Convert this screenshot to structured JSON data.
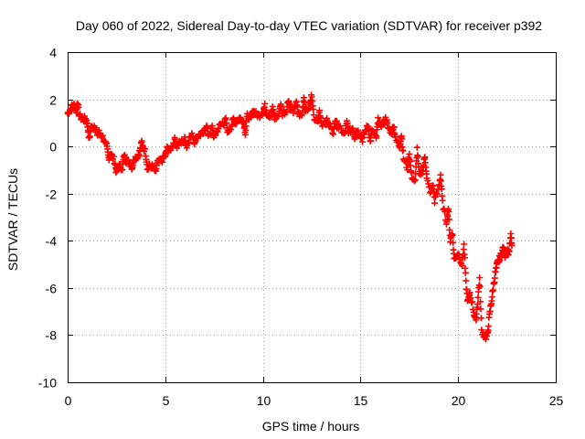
{
  "chart_data": {
    "type": "scatter",
    "title": "Day 060 of 2022, Sidereal Day-to-day VTEC variation (SDTVAR) for receiver p392",
    "xlabel": "GPS time / hours",
    "ylabel": "SDTVAR / TECUs",
    "xlim": [
      0,
      25
    ],
    "ylim": [
      -10,
      4
    ],
    "xticks": [
      0,
      5,
      10,
      15,
      20,
      25
    ],
    "yticks": [
      -10,
      -8,
      -6,
      -4,
      -2,
      0,
      2,
      4
    ],
    "xtick_labels": [
      "0",
      "5",
      "10",
      "15",
      "20",
      "25"
    ],
    "ytick_labels": [
      "-10",
      "-8",
      "-6",
      "-4",
      "-2",
      "0",
      "2",
      "4"
    ],
    "grid": true,
    "marker": "plus",
    "color": "#ff0000",
    "series": [
      {
        "name": "SDTVAR",
        "points": [
          [
            0.0,
            1.4
          ],
          [
            0.15,
            1.6
          ],
          [
            0.3,
            1.8
          ],
          [
            0.45,
            1.5
          ],
          [
            0.6,
            1.3
          ],
          [
            0.8,
            1.1
          ],
          [
            1.0,
            1.0
          ],
          [
            1.2,
            0.8
          ],
          [
            1.4,
            0.9
          ],
          [
            1.6,
            0.6
          ],
          [
            1.8,
            0.4
          ],
          [
            2.0,
            0.0
          ],
          [
            2.2,
            -0.3
          ],
          [
            2.4,
            -0.6
          ],
          [
            2.6,
            -0.8
          ],
          [
            2.8,
            -0.9
          ],
          [
            3.0,
            -0.6
          ],
          [
            3.2,
            -0.7
          ],
          [
            3.4,
            -0.5
          ],
          [
            3.6,
            -0.4
          ],
          [
            3.8,
            0.2
          ],
          [
            4.0,
            -0.3
          ],
          [
            4.2,
            -0.8
          ],
          [
            4.4,
            -0.9
          ],
          [
            4.6,
            -0.7
          ],
          [
            4.8,
            -0.6
          ],
          [
            5.0,
            -0.4
          ],
          [
            5.2,
            -0.2
          ],
          [
            5.4,
            0.1
          ],
          [
            5.6,
            0.0
          ],
          [
            5.8,
            0.2
          ],
          [
            6.0,
            0.3
          ],
          [
            6.2,
            0.3
          ],
          [
            6.4,
            0.5
          ],
          [
            6.6,
            0.4
          ],
          [
            6.8,
            0.5
          ],
          [
            7.0,
            0.6
          ],
          [
            7.2,
            0.5
          ],
          [
            7.4,
            0.8
          ],
          [
            7.6,
            0.6
          ],
          [
            7.8,
            0.9
          ],
          [
            8.0,
            1.0
          ],
          [
            8.2,
            0.6
          ],
          [
            8.4,
            0.9
          ],
          [
            8.6,
            1.0
          ],
          [
            8.8,
            1.2
          ],
          [
            9.0,
            1.1
          ],
          [
            9.2,
            1.3
          ],
          [
            9.4,
            1.2
          ],
          [
            9.6,
            1.4
          ],
          [
            9.8,
            1.3
          ],
          [
            10.0,
            1.5
          ],
          [
            10.2,
            1.4
          ],
          [
            10.4,
            1.3
          ],
          [
            10.6,
            1.2
          ],
          [
            10.8,
            1.3
          ],
          [
            11.0,
            1.4
          ],
          [
            11.2,
            1.5
          ],
          [
            11.4,
            1.6
          ],
          [
            11.6,
            1.5
          ],
          [
            11.8,
            1.4
          ],
          [
            12.0,
            1.3
          ],
          [
            12.2,
            1.5
          ],
          [
            12.4,
            1.7
          ],
          [
            12.6,
            1.3
          ],
          [
            12.8,
            1.1
          ],
          [
            13.0,
            1.0
          ],
          [
            13.2,
            0.9
          ],
          [
            13.4,
            0.8
          ],
          [
            13.6,
            0.6
          ],
          [
            13.8,
            0.9
          ],
          [
            14.0,
            0.7
          ],
          [
            14.2,
            0.5
          ],
          [
            14.4,
            0.6
          ],
          [
            14.6,
            0.8
          ],
          [
            14.8,
            0.7
          ],
          [
            15.0,
            0.5
          ],
          [
            15.2,
            0.6
          ],
          [
            15.4,
            0.9
          ],
          [
            15.6,
            0.7
          ],
          [
            15.8,
            0.3
          ],
          [
            16.0,
            0.9
          ],
          [
            16.2,
            1.0
          ],
          [
            16.4,
            0.8
          ],
          [
            16.6,
            0.6
          ],
          [
            16.8,
            0.3
          ],
          [
            17.0,
            0.0
          ],
          [
            17.2,
            -0.5
          ],
          [
            17.4,
            -0.9
          ],
          [
            17.6,
            -1.2
          ],
          [
            17.8,
            -1.5
          ],
          [
            18.0,
            -1.2
          ],
          [
            18.2,
            -1.0
          ],
          [
            18.4,
            -1.4
          ],
          [
            18.6,
            -2.0
          ],
          [
            18.8,
            -2.3
          ],
          [
            19.0,
            -1.8
          ],
          [
            19.2,
            -2.4
          ],
          [
            19.4,
            -3.2
          ],
          [
            19.6,
            -4.0
          ],
          [
            19.8,
            -4.8
          ],
          [
            20.0,
            -4.5
          ],
          [
            20.2,
            -5.0
          ],
          [
            20.4,
            -5.8
          ],
          [
            20.6,
            -6.2
          ],
          [
            20.8,
            -7.0
          ],
          [
            21.0,
            -6.6
          ],
          [
            21.2,
            -7.8
          ],
          [
            21.4,
            -8.1
          ],
          [
            21.6,
            -7.2
          ],
          [
            21.8,
            -6.0
          ],
          [
            22.0,
            -5.0
          ],
          [
            22.2,
            -4.6
          ],
          [
            22.4,
            -4.6
          ],
          [
            22.6,
            -4.5
          ],
          [
            22.7,
            -3.8
          ],
          [
            22.75,
            -4.2
          ],
          [
            0.5,
            1.9
          ],
          [
            0.9,
            1.2
          ],
          [
            1.1,
            0.3
          ],
          [
            1.5,
            0.5
          ],
          [
            2.1,
            -0.5
          ],
          [
            2.5,
            -1.1
          ],
          [
            2.9,
            -0.4
          ],
          [
            3.3,
            -0.9
          ],
          [
            3.7,
            -0.2
          ],
          [
            4.1,
            -1.0
          ],
          [
            4.5,
            -1.1
          ],
          [
            5.1,
            -0.1
          ],
          [
            5.5,
            0.3
          ],
          [
            6.1,
            0.0
          ],
          [
            6.5,
            0.2
          ],
          [
            7.1,
            0.9
          ],
          [
            7.5,
            0.4
          ],
          [
            8.1,
            1.1
          ],
          [
            8.5,
            1.2
          ],
          [
            9.1,
            0.6
          ],
          [
            9.5,
            1.5
          ],
          [
            10.1,
            1.7
          ],
          [
            10.5,
            1.6
          ],
          [
            10.9,
            1.8
          ],
          [
            11.3,
            2.0
          ],
          [
            11.7,
            1.9
          ],
          [
            12.1,
            2.1
          ],
          [
            12.5,
            2.2
          ],
          [
            12.9,
            1.5
          ],
          [
            13.3,
            1.2
          ],
          [
            13.7,
            1.1
          ],
          [
            14.3,
            1.0
          ],
          [
            14.7,
            0.4
          ],
          [
            15.1,
            0.3
          ],
          [
            15.5,
            0.2
          ],
          [
            15.9,
            1.1
          ],
          [
            16.3,
            1.2
          ],
          [
            16.7,
            0.9
          ],
          [
            17.1,
            0.5
          ],
          [
            17.5,
            -0.3
          ],
          [
            17.9,
            -0.1
          ],
          [
            18.3,
            -0.4
          ],
          [
            18.7,
            -1.6
          ],
          [
            19.1,
            -1.2
          ],
          [
            19.5,
            -2.6
          ],
          [
            19.7,
            -3.6
          ],
          [
            20.3,
            -4.2
          ],
          [
            20.5,
            -6.6
          ],
          [
            20.9,
            -7.4
          ],
          [
            21.1,
            -5.6
          ],
          [
            21.5,
            -8.0
          ],
          [
            21.7,
            -6.6
          ],
          [
            21.9,
            -5.4
          ],
          [
            22.1,
            -4.8
          ],
          [
            22.3,
            -4.3
          ],
          [
            22.5,
            -4.4
          ]
        ]
      }
    ]
  }
}
